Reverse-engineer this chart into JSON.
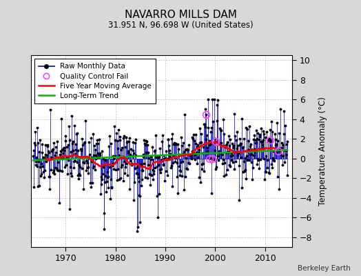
{
  "title": "NAVARRO MILLS DAM",
  "subtitle": "31.951 N, 96.698 W (United States)",
  "credit": "Berkeley Earth",
  "ylabel": "Temperature Anomaly (°C)",
  "ylim": [
    -9,
    10.5
  ],
  "yticks": [
    -8,
    -6,
    -4,
    -2,
    0,
    2,
    4,
    6,
    8,
    10
  ],
  "start_year": 1963.5,
  "end_year": 2014.5,
  "bg_color": "#d8d8d8",
  "plot_bg_color": "#ffffff",
  "raw_color": "#0000cc",
  "ma_color": "#ff0000",
  "trend_color": "#00bb00",
  "qc_color": "#ff44ff",
  "seed": 17
}
